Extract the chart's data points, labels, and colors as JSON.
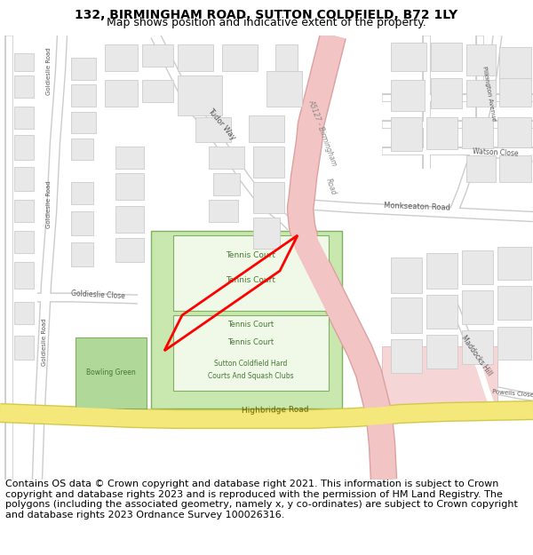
{
  "title_line1": "132, BIRMINGHAM ROAD, SUTTON COLDFIELD, B72 1LY",
  "title_line2": "Map shows position and indicative extent of the property.",
  "footer_text": "Contains OS data © Crown copyright and database right 2021. This information is subject to Crown copyright and database rights 2023 and is reproduced with the permission of HM Land Registry. The polygons (including the associated geometry, namely x, y co-ordinates) are subject to Crown copyright and database rights 2023 Ordnance Survey 100026316.",
  "bg_color": "#ffffff",
  "map_bg": "#ffffff",
  "road_pink_fill": "#f2c4c4",
  "road_pink_edge": "#dda0a0",
  "road_white_fill": "#ffffff",
  "road_gray_edge": "#cccccc",
  "road_yellow_fill": "#f5e87a",
  "road_yellow_edge": "#d4c84a",
  "building_fill": "#e8e8e8",
  "building_stroke": "#cccccc",
  "green_light": "#c8e8b0",
  "green_medium": "#b0d898",
  "green_dark_edge": "#80b060",
  "plot_stroke": "#ff0000",
  "title_fontsize": 10,
  "subtitle_fontsize": 9,
  "footer_fontsize": 8,
  "label_color": "#555555",
  "road_label_color": "#888888"
}
